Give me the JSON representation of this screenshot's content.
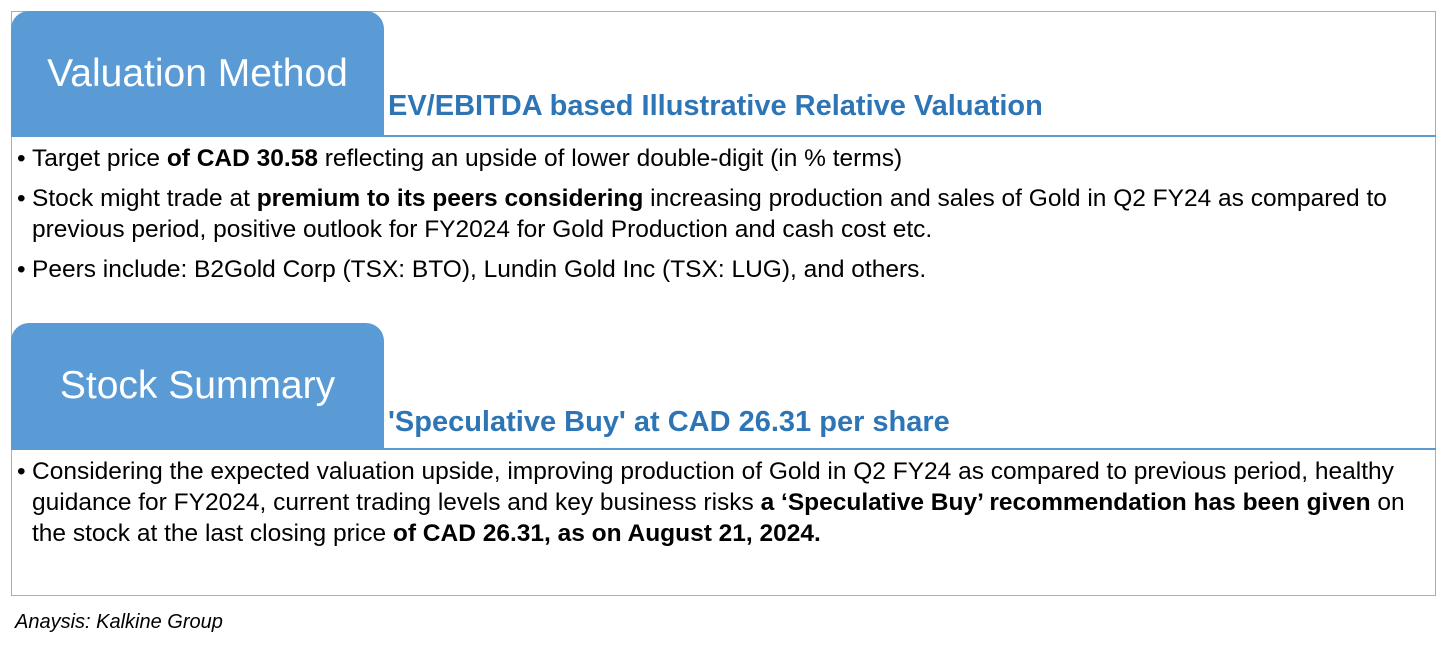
{
  "valuation": {
    "heading": "Valuation Method",
    "subtitle": "EV/EBITDA based Illustrative Relative Valuation",
    "bullets": [
      {
        "a": "Target price ",
        "b": "of CAD 30.58",
        "c": " reflecting an upside of lower double-digit (in % terms)"
      },
      {
        "a": "Stock might trade at ",
        "b": "premium to its peers considering",
        "c": " increasing production and sales of Gold in Q2 FY24 as compared to previous period, positive outlook for FY2024 for Gold Production and cash cost etc."
      },
      {
        "a": "Peers include:  B2Gold Corp (TSX: BTO), Lundin Gold Inc (TSX: LUG), and others."
      }
    ]
  },
  "summary": {
    "heading": "Stock Summary",
    "subtitle": "'Speculative Buy' at CAD 26.31 per share",
    "bullet": {
      "a": "Considering the expected valuation upside, improving production of Gold in Q2 FY24 as compared to previous period, healthy guidance for FY2024, current trading levels and key business risks ",
      "b": "a ‘Speculative Buy’ recommendation has been given",
      "c": " on the stock at the last closing price ",
      "d": "of CAD 26.31, as on August 21, 2024."
    }
  },
  "footer": "Anaysis: Kalkine Group",
  "colors": {
    "tab": "#5b9bd5",
    "subtitle": "#2e75b6",
    "border": "#8db3e2"
  }
}
